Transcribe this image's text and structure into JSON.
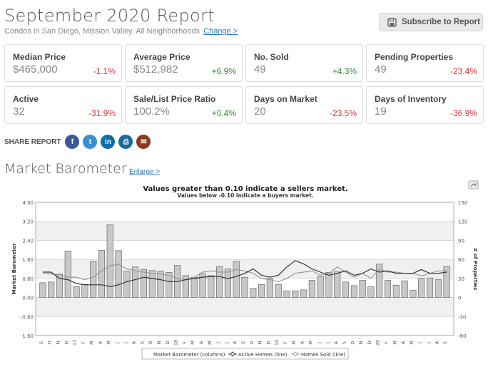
{
  "header": {
    "title": "September 2020 Report",
    "subtitle": "Condos in San Diego, Mission Valley, All Neighborhoods",
    "change_link": "Change >",
    "subscribe_label": "Subscribe to Report"
  },
  "cards": [
    {
      "label": "Median Price",
      "value": "$465,000",
      "change": "-1.1%",
      "trend": "neg"
    },
    {
      "label": "Average Price",
      "value": "$512,982",
      "change": "+6.9%",
      "trend": "pos"
    },
    {
      "label": "No. Sold",
      "value": "49",
      "change": "+4.3%",
      "trend": "pos"
    },
    {
      "label": "Pending Properties",
      "value": "49",
      "change": "-23.4%",
      "trend": "neg"
    },
    {
      "label": "Active",
      "value": "32",
      "change": "-31.9%",
      "trend": "neg"
    },
    {
      "label": "Sale/List Price Ratio",
      "value": "100.2%",
      "change": "+0.4%",
      "trend": "pos"
    },
    {
      "label": "Days on Market",
      "value": "20",
      "change": "-23.5%",
      "trend": "neg"
    },
    {
      "label": "Days of Inventory",
      "value": "19",
      "change": "-36.9%",
      "trend": "neg"
    }
  ],
  "share": {
    "label": "SHARE REPORT",
    "buttons": [
      {
        "icon": "facebook-icon",
        "glyph": "f",
        "color": "#3b5998"
      },
      {
        "icon": "twitter-icon",
        "glyph": "t",
        "color": "#3b8ed0"
      },
      {
        "icon": "linkedin-icon",
        "glyph": "in",
        "color": "#0e6fa8"
      },
      {
        "icon": "print-icon",
        "glyph": "⎙",
        "color": "#1b6a9e"
      },
      {
        "icon": "email-icon",
        "glyph": "✉",
        "color": "#8b3b1e"
      }
    ]
  },
  "barometer": {
    "title": "Market Barometer",
    "enlarge_label": "Enlarge >"
  },
  "chart_data": {
    "type": "bar",
    "title": "Values greater than 0.10 indicate a sellers market.",
    "subtitle": "Values below -0.10 indicate a buyers market.",
    "ylabel": "Market Barometer",
    "y2label": "# of Properties",
    "ylim": [
      -1.6,
      4.0
    ],
    "y2lim": [
      -60,
      150
    ],
    "yticks": [
      "4.00",
      "3.20",
      "2.40",
      "1.60",
      "0.80",
      "0.00",
      "-0.80",
      "-1.60"
    ],
    "y2ticks": [
      "150",
      "120",
      "90",
      "60",
      "30",
      "0",
      "-30",
      "-60"
    ],
    "grid": true,
    "categories": [
      "S",
      "O",
      "N",
      "D",
      "17",
      "F",
      "M",
      "A",
      "M",
      "J",
      "J",
      "A",
      "S",
      "O",
      "N",
      "D",
      "18",
      "F",
      "M",
      "A",
      "M",
      "J",
      "J",
      "A",
      "S",
      "O",
      "N",
      "D",
      "19",
      "F",
      "M",
      "A",
      "M",
      "J",
      "J",
      "A",
      "S",
      "O",
      "N",
      "D",
      "20",
      "F",
      "M",
      "A",
      "M",
      "J",
      "J",
      "A",
      "S"
    ],
    "series": [
      {
        "name": "Market Barometer (columns)",
        "kind": "column",
        "values": [
          0.62,
          0.65,
          0.98,
          1.95,
          0.46,
          0.55,
          1.52,
          1.98,
          3.05,
          1.97,
          1.1,
          1.28,
          1.18,
          1.13,
          1.1,
          1.05,
          1.35,
          0.92,
          0.85,
          1.0,
          0.92,
          1.3,
          1.2,
          1.52,
          0.85,
          0.38,
          0.55,
          0.8,
          0.55,
          0.28,
          0.28,
          0.32,
          0.72,
          0.88,
          1.05,
          1.1,
          0.65,
          0.5,
          0.72,
          0.45,
          1.4,
          0.72,
          0.52,
          0.7,
          0.3,
          0.8,
          0.82,
          0.75,
          1.3
        ]
      },
      {
        "name": "Active Homes (line)",
        "kind": "line",
        "axis": "y2",
        "values": [
          40,
          40,
          30,
          28,
          22,
          20,
          20,
          20,
          17,
          20,
          25,
          28,
          32,
          30,
          28,
          25,
          25,
          28,
          30,
          32,
          33,
          33,
          30,
          33,
          38,
          45,
          35,
          32,
          35,
          48,
          58,
          53,
          45,
          40,
          35,
          38,
          42,
          35,
          38,
          45,
          40,
          42,
          38,
          38,
          38,
          44,
          38,
          38,
          40
        ]
      },
      {
        "name": "Homes Sold (line)",
        "kind": "line",
        "axis": "y2",
        "values": [
          38,
          37,
          36,
          32,
          32,
          28,
          32,
          42,
          50,
          52,
          45,
          42,
          40,
          38,
          37,
          35,
          30,
          28,
          32,
          40,
          42,
          40,
          40,
          44,
          42,
          38,
          30,
          28,
          25,
          30,
          38,
          40,
          42,
          35,
          38,
          48,
          40,
          32,
          38,
          30,
          45,
          40,
          40,
          38,
          38,
          34,
          38,
          42,
          42
        ]
      }
    ],
    "legend_position": "bottom-center"
  }
}
